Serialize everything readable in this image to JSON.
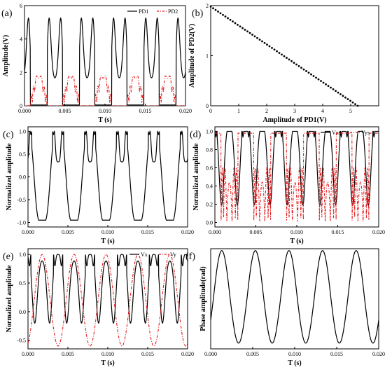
{
  "figure": {
    "background": "#ffffff",
    "axis_color": "#000000"
  },
  "chart_data": [
    {
      "id": "a",
      "panel_label": "(a)",
      "type": "line",
      "xlabel": "T (s)",
      "ylabel": "Amplitude(V)",
      "xlim": [
        0,
        0.02
      ],
      "ylim": [
        0,
        6
      ],
      "xticks": [
        "0.000",
        "0.005",
        "0.010",
        "0.015",
        "0.020"
      ],
      "yticks": [
        "0",
        "2",
        "4",
        "6"
      ],
      "legend": {
        "position": "top-right",
        "entries": [
          "PD1",
          "PD2"
        ]
      },
      "series": [
        {
          "name": "PD1",
          "color": "#000000",
          "style": "solid",
          "frequency_hz": 250,
          "form": "carrier_shape_a",
          "min": 0.05,
          "max": 5.25,
          "note_dip": 3.55
        },
        {
          "name": "PD2",
          "color": "#e31a1c",
          "style": "dashdot",
          "frequency_hz": 250,
          "form": "complement_a",
          "min": 0.0,
          "max": 1.95
        }
      ]
    },
    {
      "id": "b",
      "panel_label": "(b)",
      "type": "scatter",
      "xlabel": "Amplitude of PD1(V)",
      "ylabel": "Amplitude of PD2(V)",
      "xlim": [
        0,
        6
      ],
      "ylim": [
        0,
        2
      ],
      "xticks": [
        "0",
        "1",
        "2",
        "3",
        "4",
        "5"
      ],
      "yticks": [
        "0",
        "1",
        "2"
      ],
      "series": [
        {
          "name": "",
          "color": "#000000",
          "x_start": 0.0,
          "y_start": 1.98,
          "x_end": 5.25,
          "y_end": 0.0
        }
      ]
    },
    {
      "id": "c",
      "panel_label": "(c)",
      "type": "line",
      "xlabel": "T (s)",
      "ylabel": "Normalized amplitude",
      "xlim": [
        0,
        0.02
      ],
      "ylim": [
        -1.1,
        1.1
      ],
      "xticks": [
        "0.000",
        "0.005",
        "0.010",
        "0.015",
        "0.020"
      ],
      "yticks": [
        "-1.0",
        "-0.5",
        "0.0",
        "0.5",
        "1.0"
      ],
      "series": [
        {
          "name": "",
          "color": "#000000",
          "style": "solid",
          "frequency_hz": 250,
          "form": "carrier_shape_c",
          "min": -0.95,
          "max": 1.0,
          "note_dip": 0.33
        }
      ]
    },
    {
      "id": "d",
      "panel_label": "(d)",
      "type": "line",
      "xlabel": "T (s)",
      "ylabel": "Normalized amplitude",
      "xlim": [
        0,
        0.02
      ],
      "ylim": [
        -0.05,
        1.05
      ],
      "xticks": [
        "0.000",
        "0.005",
        "0.010",
        "0.015",
        "0.020"
      ],
      "yticks": [
        "0.0",
        "0.2",
        "0.4",
        "0.6",
        "0.8",
        "1.0"
      ],
      "legend": {
        "position": "top-right",
        "entries": [
          "Vxs",
          "Vys"
        ]
      },
      "series": [
        {
          "name": "Vxs",
          "color": "#000000",
          "style": "solid",
          "frequency_hz": 250,
          "form": "carrier_shape_d",
          "min": 0.1,
          "max": 1.0,
          "note_dip": 0.85
        },
        {
          "name": "Vys",
          "color": "#e31a1c",
          "style": "dashdot",
          "frequency_hz": 250,
          "form": "complement_d",
          "min": 0.0,
          "max": 1.0
        }
      ]
    },
    {
      "id": "e",
      "panel_label": "(e)",
      "type": "line",
      "xlabel": "T (s)",
      "ylabel": "Normalized amplitude",
      "xlim": [
        0,
        0.02
      ],
      "ylim": [
        -0.65,
        1.1
      ],
      "xticks": [
        "0.000",
        "0.005",
        "0.010",
        "0.015",
        "0.020"
      ],
      "yticks": [
        "-0.5",
        "0.0",
        "0.5",
        "1.0"
      ],
      "legend": {
        "position": "top-right",
        "entries": [
          "Vx",
          "Vy"
        ]
      },
      "series": [
        {
          "name": "Vx",
          "color": "#000000",
          "style": "solid",
          "frequency_hz": 250,
          "form": "carrier_shape_e",
          "min": -0.2,
          "max": 1.0,
          "note_dip": 0.8
        },
        {
          "name": "Vy",
          "color": "#e31a1c",
          "style": "dashdot",
          "frequency_hz": 250,
          "form": "cos_e",
          "min": -0.6,
          "max": 1.0
        }
      ]
    },
    {
      "id": "f",
      "panel_label": "(f)",
      "type": "line",
      "xlabel": "T (s)",
      "ylabel": "Phase amplitude(rad)",
      "xlim": [
        0,
        0.02
      ],
      "ylim": [
        -2.6,
        2.6
      ],
      "xticks": [
        "0.000",
        "0.005",
        "0.010",
        "0.015",
        "0.020"
      ],
      "yticks": [],
      "series": [
        {
          "name": "",
          "color": "#000000",
          "style": "solid",
          "frequency_hz": 250,
          "form": "phase",
          "min": -2.3,
          "max": 2.5
        }
      ]
    }
  ]
}
